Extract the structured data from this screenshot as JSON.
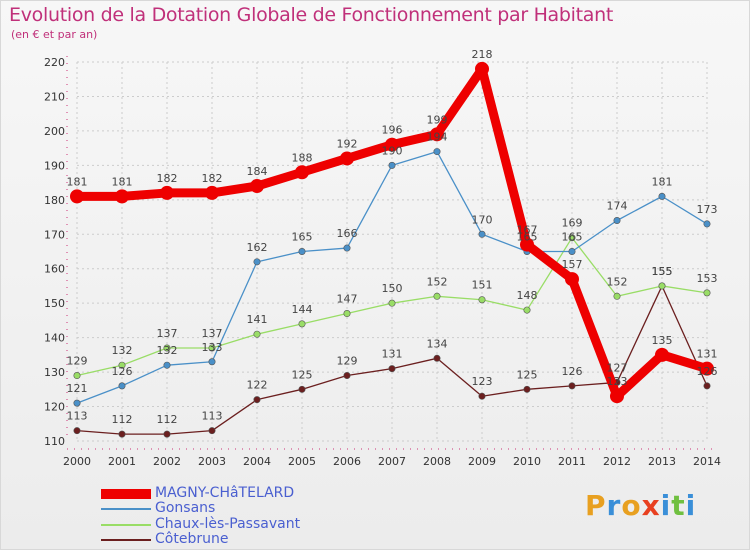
{
  "chart_data": {
    "type": "line",
    "title": "Evolution de la Dotation Globale de Fonctionnement par Habitant",
    "subtitle": "(en € et par an)",
    "xlabel": "",
    "ylabel": "",
    "x": [
      2000,
      2001,
      2002,
      2003,
      2004,
      2005,
      2006,
      2007,
      2008,
      2009,
      2010,
      2011,
      2012,
      2013,
      2014
    ],
    "ylim": [
      110,
      220
    ],
    "yticks": [
      110,
      120,
      130,
      140,
      150,
      160,
      170,
      180,
      190,
      200,
      210,
      220
    ],
    "grid": true,
    "legend_position": "bottom-left",
    "series": [
      {
        "name": "MAGNY-CHâTELARD",
        "color": "#ee0000",
        "values": [
          181,
          181,
          182,
          182,
          184,
          188,
          192,
          196,
          199,
          218,
          167,
          157,
          123,
          135,
          131
        ]
      },
      {
        "name": "Gonsans",
        "color": "#4a90c8",
        "values": [
          121,
          126,
          132,
          133,
          162,
          165,
          166,
          190,
          194,
          170,
          165,
          165,
          174,
          181,
          173
        ]
      },
      {
        "name": "Chaux-lès-Passavant",
        "color": "#99dd66",
        "values": [
          129,
          132,
          137,
          137,
          141,
          144,
          147,
          150,
          152,
          151,
          148,
          169,
          152,
          155,
          153
        ]
      },
      {
        "name": "Côtebrune",
        "color": "#6b1f1f",
        "values": [
          113,
          112,
          112,
          113,
          122,
          125,
          129,
          131,
          134,
          123,
          125,
          126,
          127,
          155,
          126
        ]
      }
    ]
  },
  "logo": {
    "text": "Proxiti",
    "letters": [
      "P",
      "r",
      "o",
      "x",
      "i",
      "t",
      "i"
    ],
    "colors": [
      "#e8a020",
      "#3a8fd8",
      "#e8a020",
      "#e84020",
      "#3a8fd8",
      "#70c040",
      "#3a8fd8"
    ]
  }
}
